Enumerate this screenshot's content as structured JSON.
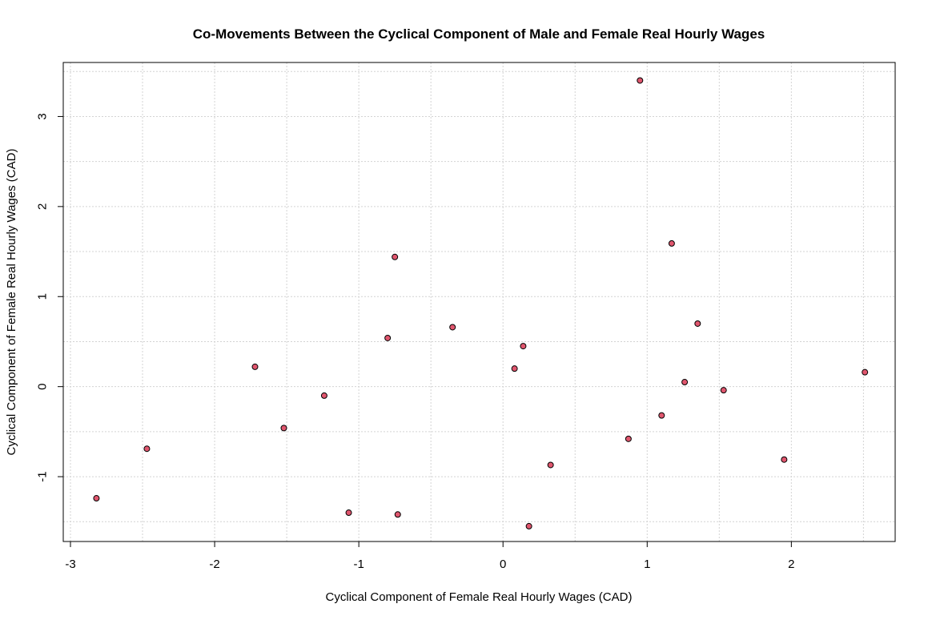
{
  "chart_data": {
    "type": "scatter",
    "title": "Co-Movements Between the Cyclical Component of Male and Female Real Hourly Wages",
    "xlabel": "Cyclical Component of Female Real Hourly Wages (CAD)",
    "ylabel": "Cyclical Component of Female Real Hourly Wages (CAD)",
    "xlim": [
      -3.05,
      2.72
    ],
    "ylim": [
      -1.72,
      3.6
    ],
    "x_ticks": [
      -3,
      -2,
      -1,
      0,
      1,
      2
    ],
    "x_tick_labels": [
      "-3",
      "-2",
      "-1",
      "0",
      "1",
      "2"
    ],
    "y_ticks": [
      -1,
      0,
      1,
      2,
      3
    ],
    "y_tick_labels": [
      "-1",
      "0",
      "1",
      "2",
      "3"
    ],
    "grid": true,
    "point_color": "#e0566e",
    "point_edge_color": "#000000",
    "points": [
      {
        "x": -2.82,
        "y": -1.24
      },
      {
        "x": -2.47,
        "y": -0.69
      },
      {
        "x": -1.72,
        "y": 0.22
      },
      {
        "x": -1.52,
        "y": -0.46
      },
      {
        "x": -1.24,
        "y": -0.1
      },
      {
        "x": -1.07,
        "y": -1.4
      },
      {
        "x": -0.8,
        "y": 0.54
      },
      {
        "x": -0.75,
        "y": 1.44
      },
      {
        "x": -0.73,
        "y": -1.42
      },
      {
        "x": -0.35,
        "y": 0.66
      },
      {
        "x": 0.08,
        "y": 0.2
      },
      {
        "x": 0.14,
        "y": 0.45
      },
      {
        "x": 0.18,
        "y": -1.55
      },
      {
        "x": 0.33,
        "y": -0.87
      },
      {
        "x": 0.87,
        "y": -0.58
      },
      {
        "x": 0.95,
        "y": 3.4
      },
      {
        "x": 1.1,
        "y": -0.32
      },
      {
        "x": 1.17,
        "y": 1.59
      },
      {
        "x": 1.26,
        "y": 0.05
      },
      {
        "x": 1.35,
        "y": 0.7
      },
      {
        "x": 1.53,
        "y": -0.04
      },
      {
        "x": 1.95,
        "y": -0.81
      },
      {
        "x": 2.51,
        "y": 0.16
      }
    ]
  }
}
